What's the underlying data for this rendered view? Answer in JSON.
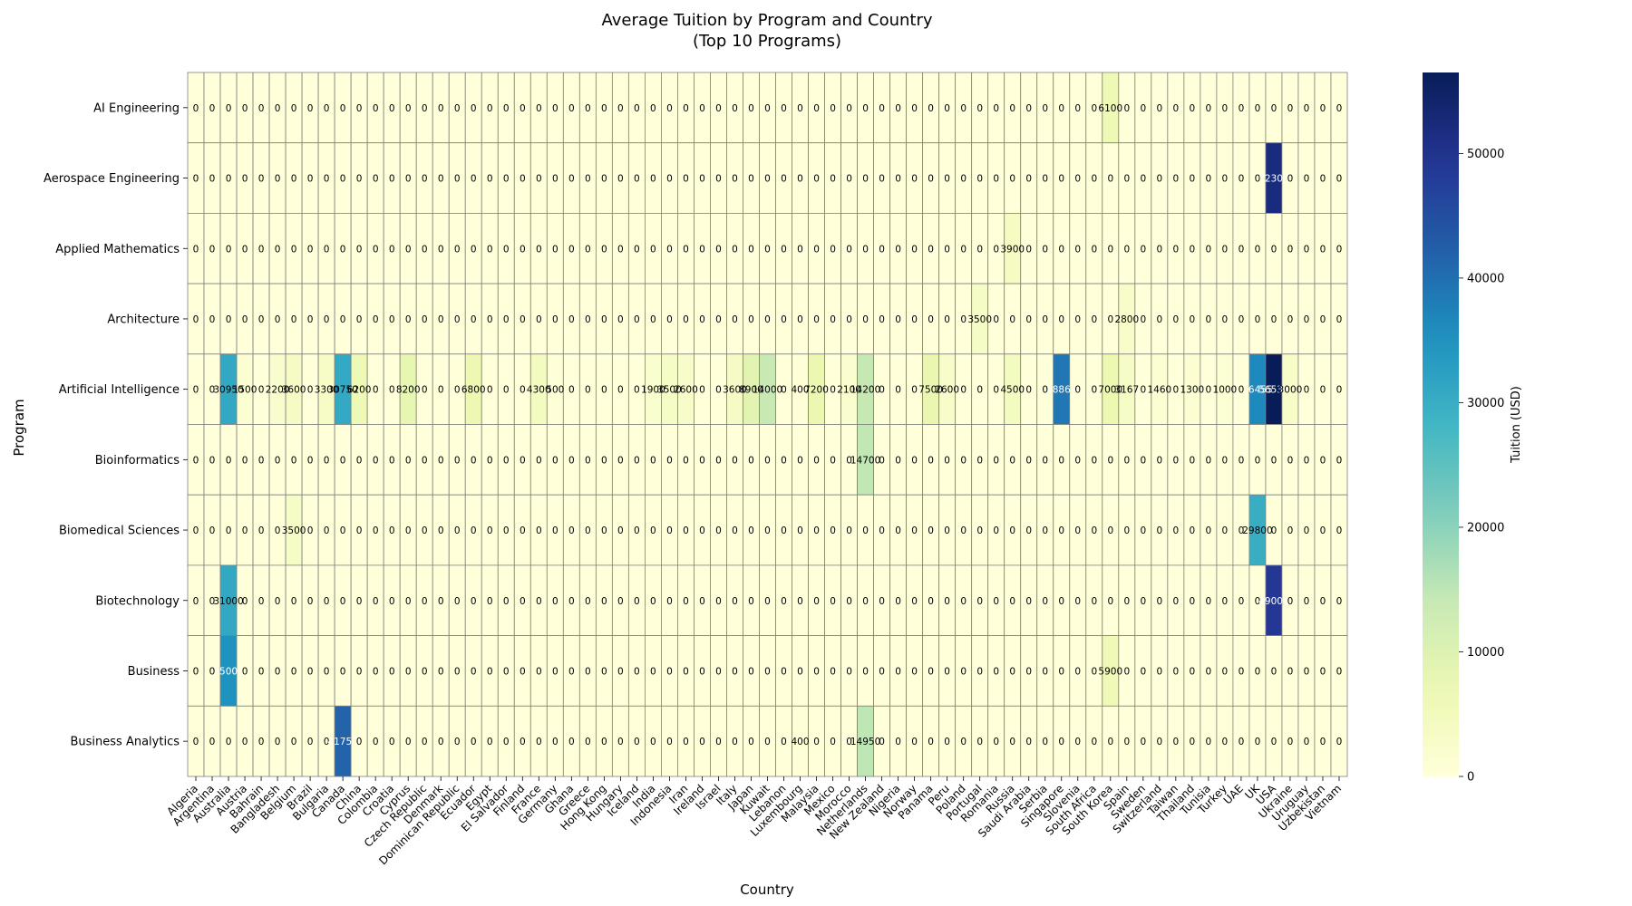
{
  "chart_data": {
    "type": "heatmap",
    "title": "Average Tuition by Program and Country",
    "subtitle": "(Top 10 Programs)",
    "xlabel": "Country",
    "ylabel": "Program",
    "colorbar_label": "Tuition (USD)",
    "colormap": "YlGnBu",
    "vmin": 0,
    "vmax": 56500,
    "colorbar_ticks": [
      0,
      10000,
      20000,
      30000,
      40000,
      50000
    ],
    "cell_annotations": true,
    "colors": {
      "grid": "#808080",
      "low": "#ffffd9",
      "high": "#081d58"
    },
    "x_categories": [
      "Algeria",
      "Argentina",
      "Australia",
      "Austria",
      "Bahrain",
      "Bangladesh",
      "Belgium",
      "Brazil",
      "Bulgaria",
      "Canada",
      "China",
      "Colombia",
      "Croatia",
      "Cyprus",
      "Czech Republic",
      "Denmark",
      "Dominican Republic",
      "Ecuador",
      "Egypt",
      "El Salvador",
      "Finland",
      "France",
      "Germany",
      "Ghana",
      "Greece",
      "Hong Kong",
      "Hungary",
      "Iceland",
      "India",
      "Indonesia",
      "Iran",
      "Ireland",
      "Israel",
      "Italy",
      "Japan",
      "Kuwait",
      "Lebanon",
      "Luxembourg",
      "Malaysia",
      "Mexico",
      "Morocco",
      "Netherlands",
      "New Zealand",
      "Nigeria",
      "Norway",
      "Panama",
      "Peru",
      "Poland",
      "Portugal",
      "Romania",
      "Russia",
      "Saudi Arabia",
      "Serbia",
      "Singapore",
      "Slovenia",
      "South Africa",
      "South Korea",
      "Spain",
      "Sweden",
      "Switzerland",
      "Taiwan",
      "Thailand",
      "Tunisia",
      "Turkey",
      "UAE",
      "UK",
      "USA",
      "Ukraine",
      "Uruguay",
      "Uzbekistan",
      "Vietnam"
    ],
    "y_categories": [
      "AI Engineering",
      "Aerospace Engineering",
      "Applied Mathematics",
      "Architecture",
      "Artificial Intelligence",
      "Bioinformatics",
      "Biomedical Sciences",
      "Biotechnology",
      "Business",
      "Business Analytics"
    ],
    "cells": [
      {
        "program": "AI Engineering",
        "country": "South Korea",
        "value": 6100
      },
      {
        "program": "Aerospace Engineering",
        "country": "USA",
        "value": 52300
      },
      {
        "program": "Applied Mathematics",
        "country": "Russia",
        "value": 3900
      },
      {
        "program": "Architecture",
        "country": "Portugal",
        "value": 3500
      },
      {
        "program": "Architecture",
        "country": "Spain",
        "value": 2800
      },
      {
        "program": "Artificial Intelligence",
        "country": "Australia",
        "value": 30950
      },
      {
        "program": "Artificial Intelligence",
        "country": "Austria",
        "value": 1500
      },
      {
        "program": "Artificial Intelligence",
        "country": "Bangladesh",
        "value": 2200
      },
      {
        "program": "Artificial Intelligence",
        "country": "Belgium",
        "value": 3600
      },
      {
        "program": "Artificial Intelligence",
        "country": "Bulgaria",
        "value": 3300
      },
      {
        "program": "Artificial Intelligence",
        "country": "Canada",
        "value": 30750
      },
      {
        "program": "Artificial Intelligence",
        "country": "China",
        "value": 6200
      },
      {
        "program": "Artificial Intelligence",
        "country": "Cyprus",
        "value": 8200
      },
      {
        "program": "Artificial Intelligence",
        "country": "Ecuador",
        "value": 6800
      },
      {
        "program": "Artificial Intelligence",
        "country": "France",
        "value": 4300
      },
      {
        "program": "Artificial Intelligence",
        "country": "Germany",
        "value": 500
      },
      {
        "program": "Artificial Intelligence",
        "country": "India",
        "value": 1900
      },
      {
        "program": "Artificial Intelligence",
        "country": "Indonesia",
        "value": 3500
      },
      {
        "program": "Artificial Intelligence",
        "country": "Iran",
        "value": 2600
      },
      {
        "program": "Artificial Intelligence",
        "country": "Italy",
        "value": 3600
      },
      {
        "program": "Artificial Intelligence",
        "country": "Japan",
        "value": 8900
      },
      {
        "program": "Artificial Intelligence",
        "country": "Kuwait",
        "value": 14000
      },
      {
        "program": "Artificial Intelligence",
        "country": "Luxembourg",
        "value": 400
      },
      {
        "program": "Artificial Intelligence",
        "country": "Malaysia",
        "value": 7200
      },
      {
        "program": "Artificial Intelligence",
        "country": "Morocco",
        "value": 2100
      },
      {
        "program": "Artificial Intelligence",
        "country": "Netherlands",
        "value": 14200
      },
      {
        "program": "Artificial Intelligence",
        "country": "Panama",
        "value": 7500
      },
      {
        "program": "Artificial Intelligence",
        "country": "Peru",
        "value": 2600
      },
      {
        "program": "Artificial Intelligence",
        "country": "Russia",
        "value": 4500
      },
      {
        "program": "Artificial Intelligence",
        "country": "Singapore",
        "value": 38867
      },
      {
        "program": "Artificial Intelligence",
        "country": "South Korea",
        "value": 7000
      },
      {
        "program": "Artificial Intelligence",
        "country": "Spain",
        "value": 3167
      },
      {
        "program": "Artificial Intelligence",
        "country": "Switzerland",
        "value": 1460
      },
      {
        "program": "Artificial Intelligence",
        "country": "Thailand",
        "value": 1300
      },
      {
        "program": "Artificial Intelligence",
        "country": "Turkey",
        "value": 1000
      },
      {
        "program": "Artificial Intelligence",
        "country": "UK",
        "value": 36455
      },
      {
        "program": "Artificial Intelligence",
        "country": "USA",
        "value": 56536
      },
      {
        "program": "Artificial Intelligence",
        "country": "Ukraine",
        "value": 3000
      },
      {
        "program": "Bioinformatics",
        "country": "Netherlands",
        "value": 14700
      },
      {
        "program": "Biomedical Sciences",
        "country": "Belgium",
        "value": 3500
      },
      {
        "program": "Biomedical Sciences",
        "country": "UK",
        "value": 29800
      },
      {
        "program": "Biotechnology",
        "country": "Australia",
        "value": 31000
      },
      {
        "program": "Biotechnology",
        "country": "USA",
        "value": 49000
      },
      {
        "program": "Business",
        "country": "Australia",
        "value": 35000
      },
      {
        "program": "Business",
        "country": "South Korea",
        "value": 5900
      },
      {
        "program": "Business Analytics",
        "country": "Canada",
        "value": 41750
      },
      {
        "program": "Business Analytics",
        "country": "Luxembourg",
        "value": 400
      },
      {
        "program": "Business Analytics",
        "country": "Netherlands",
        "value": 14950
      }
    ]
  }
}
